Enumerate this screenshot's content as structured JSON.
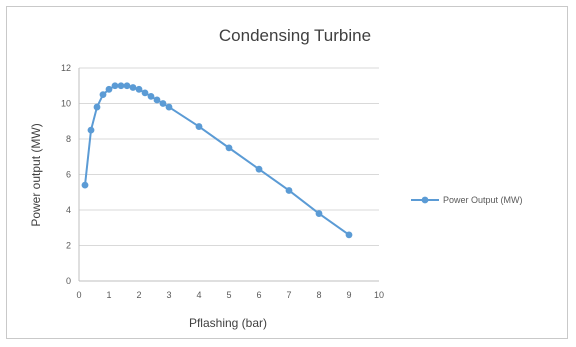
{
  "chart_data": {
    "type": "line",
    "title": "Condensing Turbine",
    "xlabel": "Pflashing (bar)",
    "ylabel": "Power output (MW)",
    "xlim": [
      0,
      10
    ],
    "ylim": [
      0,
      12
    ],
    "x_ticks": [
      0,
      1,
      2,
      3,
      4,
      5,
      6,
      7,
      8,
      9,
      10
    ],
    "y_ticks": [
      0,
      2,
      4,
      6,
      8,
      10,
      12
    ],
    "grid": "horizontal",
    "legend_position": "right",
    "series": [
      {
        "name": "Power Output (MW)",
        "color": "#5b9bd5",
        "marker": "circle",
        "x": [
          0.2,
          0.4,
          0.6,
          0.8,
          1.0,
          1.2,
          1.4,
          1.6,
          1.8,
          2.0,
          2.2,
          2.4,
          2.6,
          2.8,
          3.0,
          4.0,
          5.0,
          6.0,
          7.0,
          8.0,
          9.0
        ],
        "y": [
          5.4,
          8.5,
          9.8,
          10.5,
          10.8,
          11.0,
          11.0,
          11.0,
          10.9,
          10.8,
          10.6,
          10.4,
          10.2,
          10.0,
          9.8,
          8.7,
          7.5,
          6.3,
          5.1,
          3.8,
          2.6
        ]
      }
    ]
  }
}
